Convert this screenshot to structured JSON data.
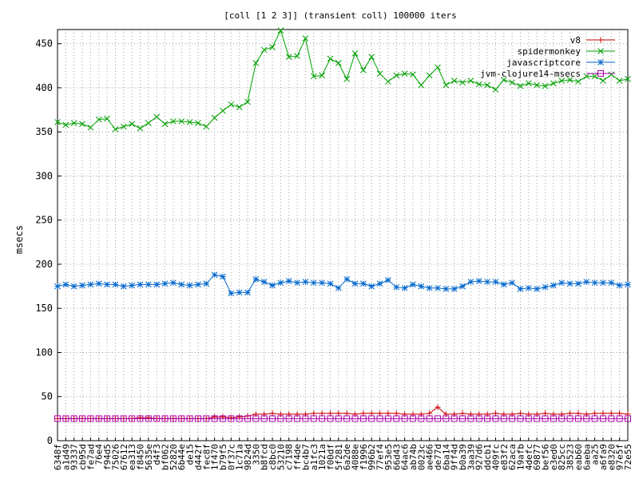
{
  "chart_data": {
    "type": "line",
    "title": "[coll [1 2 3]] (transient coll) 100000 iters",
    "xlabel": "",
    "ylabel": "msecs",
    "ylim": [
      0,
      466
    ],
    "yticks": [
      0,
      50,
      100,
      150,
      200,
      250,
      300,
      350,
      400,
      450
    ],
    "grid": true,
    "legend_position": "top-right",
    "categories": [
      "6348f",
      "a1d49",
      "93337",
      "cb95d",
      "fe7ad",
      "76e4",
      "f94d5",
      "75026",
      "67612",
      "ea313",
      "f8450",
      "5635e",
      "d4f3",
      "bf062",
      "52820",
      "6b44e",
      "de15",
      "d442f",
      "fec8f",
      "1f470",
      "b79f5",
      "0f37c",
      "1c71a",
      "9824d",
      "3350",
      "b8fcd",
      "c8bc0",
      "53210",
      "c7198",
      "ff4de",
      "bc4b7",
      "a1fc3",
      "1021a",
      "f00df",
      "5f281",
      "6a2de",
      "4088e",
      "f1996",
      "996b2",
      "77ef4",
      "953e5",
      "66d43",
      "64ac6",
      "ab74b",
      "0023c",
      "ae466",
      "de77d",
      "6ba14",
      "9ff4d",
      "b0a39",
      "3aa39",
      "927d6",
      "ddcb1",
      "409fc",
      "e83f2",
      "62aca",
      "19afb",
      "4defc",
      "69877",
      "bef56",
      "e3ed0",
      "825cc",
      "38523",
      "eab60",
      "6aeba",
      "aa25",
      "a6fa9",
      "e8320",
      "97e5f",
      "72e55"
    ],
    "series": [
      {
        "name": "v8",
        "color": "#cc0000",
        "marker": "plus",
        "values": [
          25,
          25,
          25,
          25,
          25,
          25,
          25,
          25,
          25,
          25,
          26,
          26,
          25,
          25,
          25,
          25,
          25,
          25,
          25,
          27,
          27,
          26,
          27,
          28,
          30,
          30,
          31,
          30,
          30,
          30,
          30,
          31,
          31,
          31,
          31,
          31,
          30,
          31,
          31,
          31,
          31,
          31,
          30,
          30,
          30,
          31,
          38,
          30,
          30,
          31,
          30,
          30,
          30,
          31,
          30,
          30,
          31,
          30,
          30,
          31,
          30,
          30,
          31,
          31,
          30,
          31,
          31,
          31,
          31,
          30
        ]
      },
      {
        "name": "spidermonkey",
        "color": "#00a000",
        "marker": "x",
        "values": [
          361,
          358,
          360,
          359,
          355,
          364,
          365,
          353,
          356,
          359,
          354,
          360,
          367,
          359,
          362,
          362,
          361,
          360,
          356,
          366,
          374,
          381,
          378,
          384,
          428,
          443,
          446,
          465,
          435,
          436,
          456,
          413,
          414,
          433,
          428,
          410,
          439,
          420,
          435,
          416,
          407,
          414,
          416,
          415,
          403,
          414,
          423,
          403,
          408,
          406,
          408,
          404,
          403,
          398,
          409,
          406,
          402,
          405,
          403,
          402,
          405,
          408,
          409,
          407,
          413,
          413,
          408,
          415,
          408,
          410
        ]
      },
      {
        "name": "javascriptcore",
        "color": "#0066cc",
        "marker": "star",
        "values": [
          175,
          177,
          175,
          176,
          177,
          178,
          177,
          177,
          175,
          176,
          177,
          177,
          177,
          178,
          179,
          177,
          176,
          177,
          178,
          188,
          186,
          167,
          168,
          168,
          183,
          180,
          176,
          179,
          181,
          179,
          180,
          179,
          179,
          178,
          173,
          183,
          178,
          178,
          175,
          178,
          182,
          174,
          173,
          177,
          175,
          173,
          173,
          172,
          172,
          175,
          180,
          181,
          180,
          180,
          177,
          179,
          172,
          173,
          172,
          174,
          176,
          179,
          178,
          178,
          180,
          179,
          179,
          179,
          176,
          177
        ]
      },
      {
        "name": "jvm-clojure14-msecs",
        "color": "#aa00aa",
        "marker": "square",
        "values": [
          25,
          25,
          25,
          25,
          25,
          25,
          25,
          25,
          25,
          25,
          25,
          25,
          25,
          25,
          25,
          25,
          25,
          25,
          25,
          25,
          25,
          25,
          25,
          25,
          25,
          25,
          25,
          25,
          25,
          25,
          25,
          25,
          25,
          25,
          25,
          25,
          25,
          25,
          25,
          25,
          25,
          25,
          25,
          25,
          25,
          25,
          25,
          25,
          25,
          25,
          25,
          25,
          25,
          25,
          25,
          25,
          25,
          25,
          25,
          25,
          25,
          25,
          25,
          25,
          25,
          25,
          25,
          25,
          25,
          25
        ]
      }
    ]
  }
}
